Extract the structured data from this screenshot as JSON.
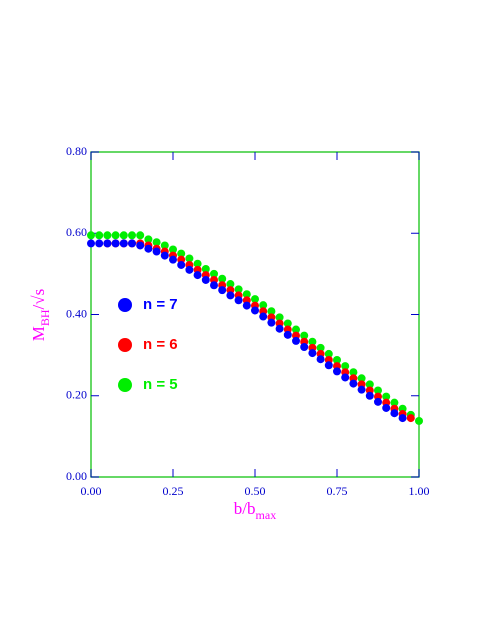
{
  "chart_data": {
    "type": "scatter",
    "xlabel": {
      "main": "b/b",
      "sub": "max"
    },
    "ylabel": {
      "main": "M",
      "sub": "BH",
      "tail": "/√s"
    },
    "xlim": [
      0,
      1
    ],
    "ylim": [
      0,
      0.8
    ],
    "xticks": [
      {
        "value": 0,
        "label": "0.00"
      },
      {
        "value": 0.25,
        "label": "0.25"
      },
      {
        "value": 0.5,
        "label": "0.50"
      },
      {
        "value": 0.75,
        "label": "0.75"
      },
      {
        "value": 1,
        "label": "1.00"
      }
    ],
    "yticks": [
      {
        "value": 0,
        "label": "0.00"
      },
      {
        "value": 0.2,
        "label": "0.20"
      },
      {
        "value": 0.4,
        "label": "0.40"
      },
      {
        "value": 0.6,
        "label": "0.60"
      },
      {
        "value": 0.8,
        "label": "0.80"
      }
    ],
    "legend": "left",
    "series": [
      {
        "name": "n = 7",
        "color": "#0000ff",
        "x": [
          0,
          0.025,
          0.05,
          0.075,
          0.1,
          0.125,
          0.15,
          0.175,
          0.2,
          0.225,
          0.25,
          0.275,
          0.3,
          0.325,
          0.35,
          0.375,
          0.4,
          0.425,
          0.45,
          0.475,
          0.5,
          0.525,
          0.55,
          0.575,
          0.6,
          0.625,
          0.65,
          0.675,
          0.7,
          0.725,
          0.75,
          0.775,
          0.8,
          0.825,
          0.85,
          0.875,
          0.9,
          0.925,
          0.95
        ],
        "values": [
          0.575,
          0.575,
          0.575,
          0.575,
          0.575,
          0.575,
          0.57,
          0.562,
          0.555,
          0.545,
          0.535,
          0.522,
          0.51,
          0.497,
          0.485,
          0.472,
          0.46,
          0.447,
          0.435,
          0.422,
          0.41,
          0.395,
          0.38,
          0.365,
          0.35,
          0.335,
          0.32,
          0.305,
          0.29,
          0.275,
          0.26,
          0.245,
          0.23,
          0.215,
          0.2,
          0.185,
          0.17,
          0.157,
          0.145
        ]
      },
      {
        "name": "n = 6",
        "color": "#ff0000",
        "x": [
          0.05,
          0.075,
          0.1,
          0.125,
          0.15,
          0.175,
          0.2,
          0.225,
          0.25,
          0.275,
          0.3,
          0.325,
          0.35,
          0.375,
          0.4,
          0.425,
          0.45,
          0.475,
          0.5,
          0.525,
          0.55,
          0.575,
          0.6,
          0.625,
          0.65,
          0.675,
          0.7,
          0.725,
          0.75,
          0.775,
          0.8,
          0.825,
          0.85,
          0.875,
          0.9,
          0.925,
          0.95,
          0.975
        ],
        "values": [
          0.575,
          0.575,
          0.575,
          0.575,
          0.575,
          0.57,
          0.562,
          0.555,
          0.545,
          0.535,
          0.522,
          0.51,
          0.497,
          0.485,
          0.472,
          0.46,
          0.447,
          0.435,
          0.422,
          0.408,
          0.393,
          0.378,
          0.363,
          0.348,
          0.333,
          0.318,
          0.303,
          0.288,
          0.273,
          0.258,
          0.243,
          0.228,
          0.213,
          0.198,
          0.183,
          0.168,
          0.155,
          0.145
        ]
      },
      {
        "name": "n = 5",
        "color": "#00ee00",
        "x": [
          0,
          0.025,
          0.05,
          0.075,
          0.1,
          0.125,
          0.15,
          0.175,
          0.2,
          0.225,
          0.25,
          0.275,
          0.3,
          0.325,
          0.35,
          0.375,
          0.4,
          0.425,
          0.45,
          0.475,
          0.5,
          0.525,
          0.55,
          0.575,
          0.6,
          0.625,
          0.65,
          0.675,
          0.7,
          0.725,
          0.75,
          0.775,
          0.8,
          0.825,
          0.85,
          0.875,
          0.9,
          0.925,
          0.95,
          0.975,
          1
        ],
        "values": [
          0.595,
          0.595,
          0.595,
          0.595,
          0.595,
          0.595,
          0.595,
          0.585,
          0.578,
          0.57,
          0.56,
          0.55,
          0.538,
          0.525,
          0.512,
          0.5,
          0.488,
          0.475,
          0.462,
          0.45,
          0.438,
          0.423,
          0.408,
          0.393,
          0.378,
          0.363,
          0.348,
          0.333,
          0.318,
          0.303,
          0.288,
          0.273,
          0.258,
          0.243,
          0.228,
          0.213,
          0.198,
          0.183,
          0.168,
          0.153,
          0.138
        ]
      }
    ]
  }
}
